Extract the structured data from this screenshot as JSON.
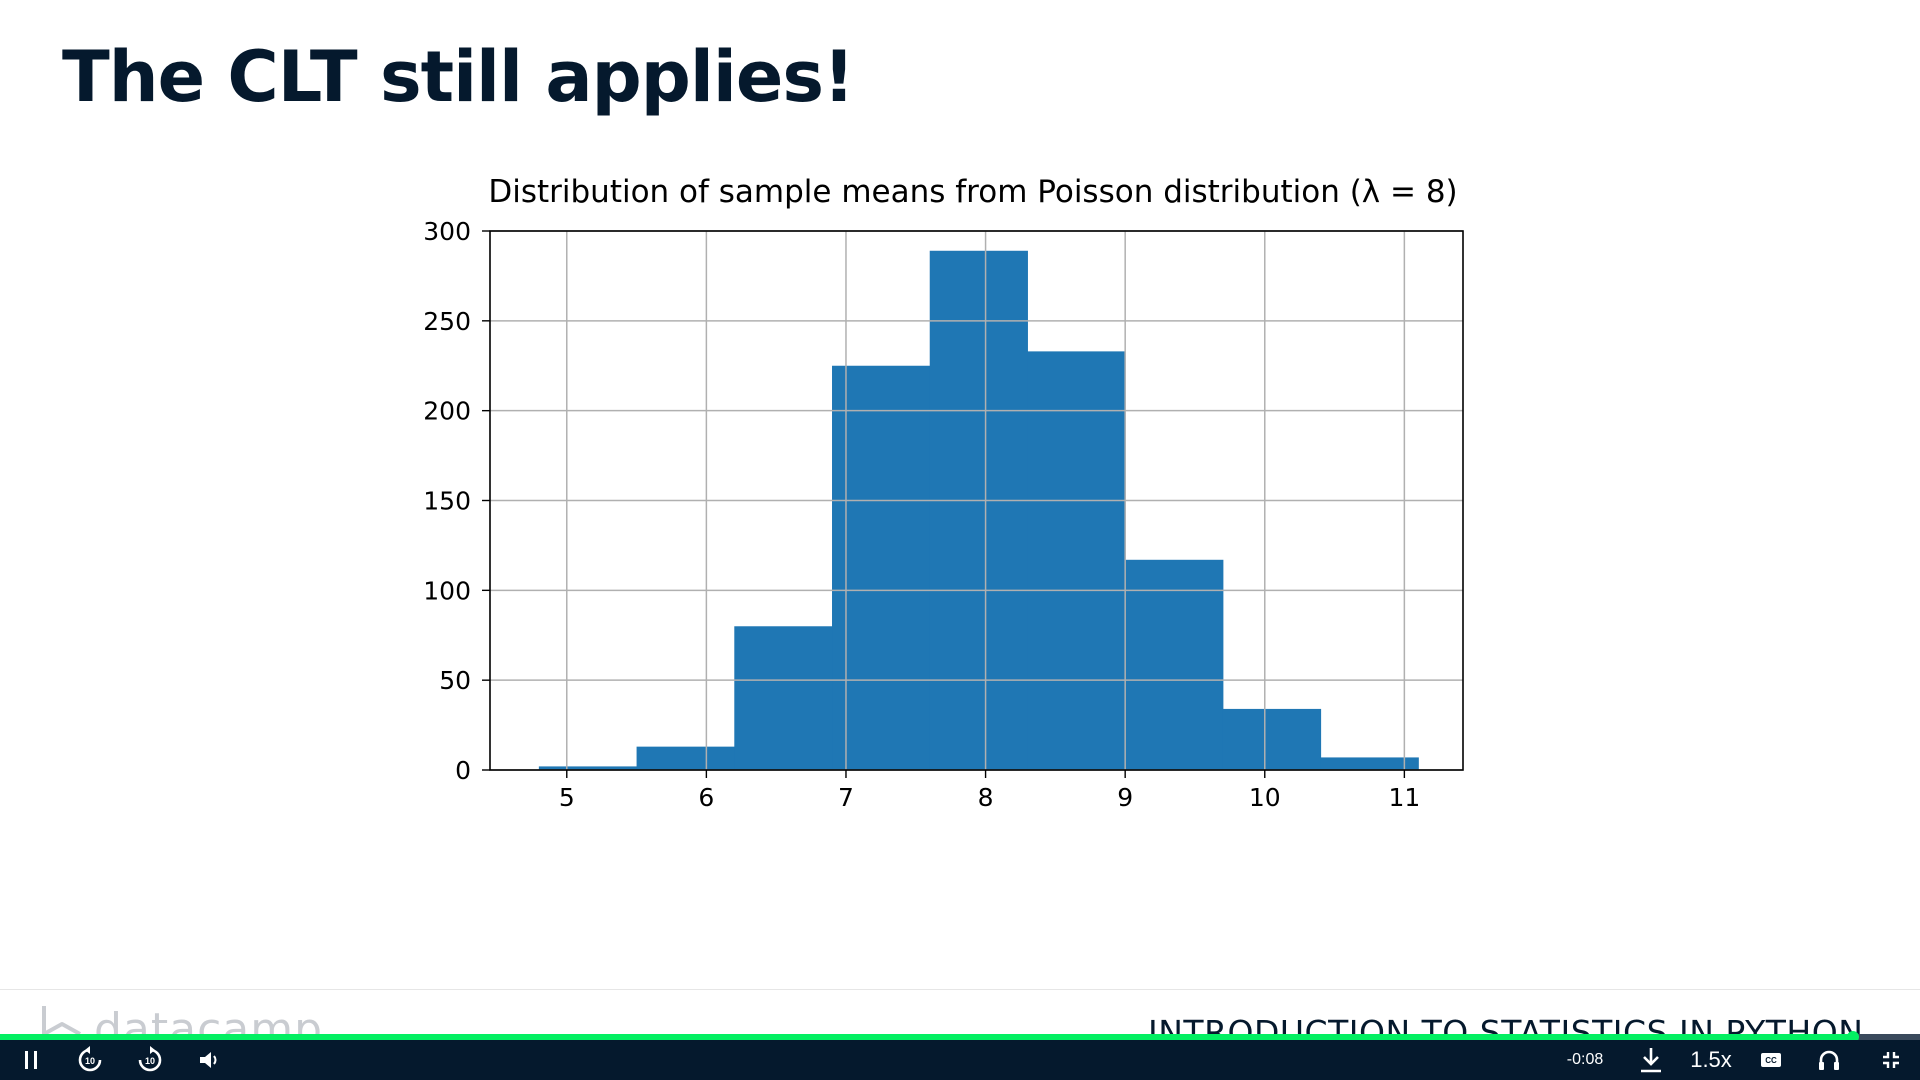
{
  "slide": {
    "title": "The CLT still applies!"
  },
  "chart_data": {
    "type": "bar",
    "title": "Distribution of sample means from Poisson distribution (λ = 8)",
    "xlabel": "",
    "ylabel": "",
    "bins": [
      {
        "x0": 4.8,
        "x1": 5.5,
        "count": 2
      },
      {
        "x0": 5.5,
        "x1": 6.2,
        "count": 13
      },
      {
        "x0": 6.2,
        "x1": 6.9,
        "count": 80
      },
      {
        "x0": 6.9,
        "x1": 7.6,
        "count": 225
      },
      {
        "x0": 7.6,
        "x1": 8.3,
        "count": 289
      },
      {
        "x0": 8.3,
        "x1": 9.0,
        "count": 233
      },
      {
        "x0": 9.0,
        "x1": 9.7,
        "count": 117
      },
      {
        "x0": 9.7,
        "x1": 10.4,
        "count": 34
      },
      {
        "x0": 10.4,
        "x1": 11.1,
        "count": 7
      }
    ],
    "xlim": [
      4.45,
      11.42
    ],
    "ylim": [
      0,
      300
    ],
    "xticks": [
      5,
      6,
      7,
      8,
      9,
      10,
      11
    ],
    "yticks": [
      0,
      50,
      100,
      150,
      200,
      250,
      300
    ],
    "grid": true,
    "bar_color": "#1f77b4"
  },
  "footer": {
    "brand": "datacamp",
    "course_title": "INTRODUCTION TO STATISTICS IN PYTHON"
  },
  "player": {
    "progress_fraction": 0.965,
    "time_remaining": "-0:08",
    "speed": "1.5x",
    "cc_label": "CC",
    "accent": "#03ef62",
    "bar_bg": "#05192d",
    "icons": [
      "pause-icon",
      "rewind-10-icon",
      "forward-10-icon",
      "volume-icon",
      "download-icon",
      "captions-icon",
      "headphones-icon",
      "exit-fullscreen-icon"
    ]
  }
}
